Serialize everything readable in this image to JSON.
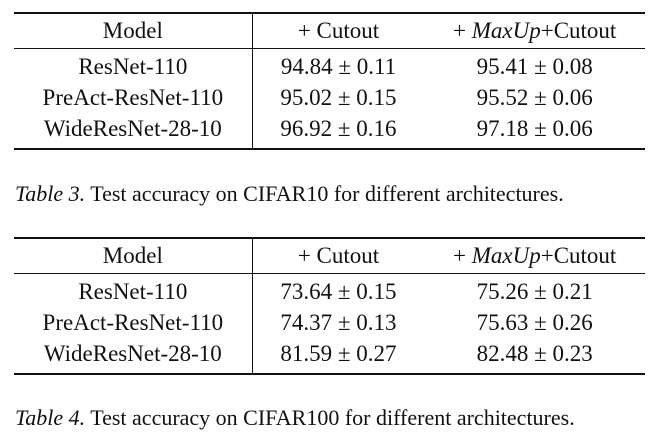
{
  "tables": [
    {
      "header": {
        "model": "Model",
        "cutout": "+ Cutout",
        "maxup_prefix": "+ ",
        "maxup_name": "MaxUp",
        "maxup_suffix": "+Cutout"
      },
      "rows": [
        {
          "model": "ResNet-110",
          "cutout": "94.84 ± 0.11",
          "maxup": "95.41 ± 0.08"
        },
        {
          "model": "PreAct-ResNet-110",
          "cutout": "95.02 ± 0.15",
          "maxup": "95.52 ± 0.06"
        },
        {
          "model": "WideResNet-28-10",
          "cutout": "96.92 ± 0.16",
          "maxup": "97.18 ± 0.06"
        }
      ],
      "caption": {
        "label": "Table 3.",
        "text": " Test accuracy on CIFAR10 for different architectures."
      }
    },
    {
      "header": {
        "model": "Model",
        "cutout": "+ Cutout",
        "maxup_prefix": "+ ",
        "maxup_name": "MaxUp",
        "maxup_suffix": "+Cutout"
      },
      "rows": [
        {
          "model": "ResNet-110",
          "cutout": "73.64 ± 0.15",
          "maxup": "75.26 ± 0.21"
        },
        {
          "model": "PreAct-ResNet-110",
          "cutout": "74.37 ± 0.13",
          "maxup": "75.63 ± 0.26"
        },
        {
          "model": "WideResNet-28-10",
          "cutout": "81.59 ± 0.27",
          "maxup": "82.48 ± 0.23"
        }
      ],
      "caption": {
        "label": "Table 4.",
        "text": " Test accuracy on CIFAR100 for different architectures."
      }
    }
  ]
}
